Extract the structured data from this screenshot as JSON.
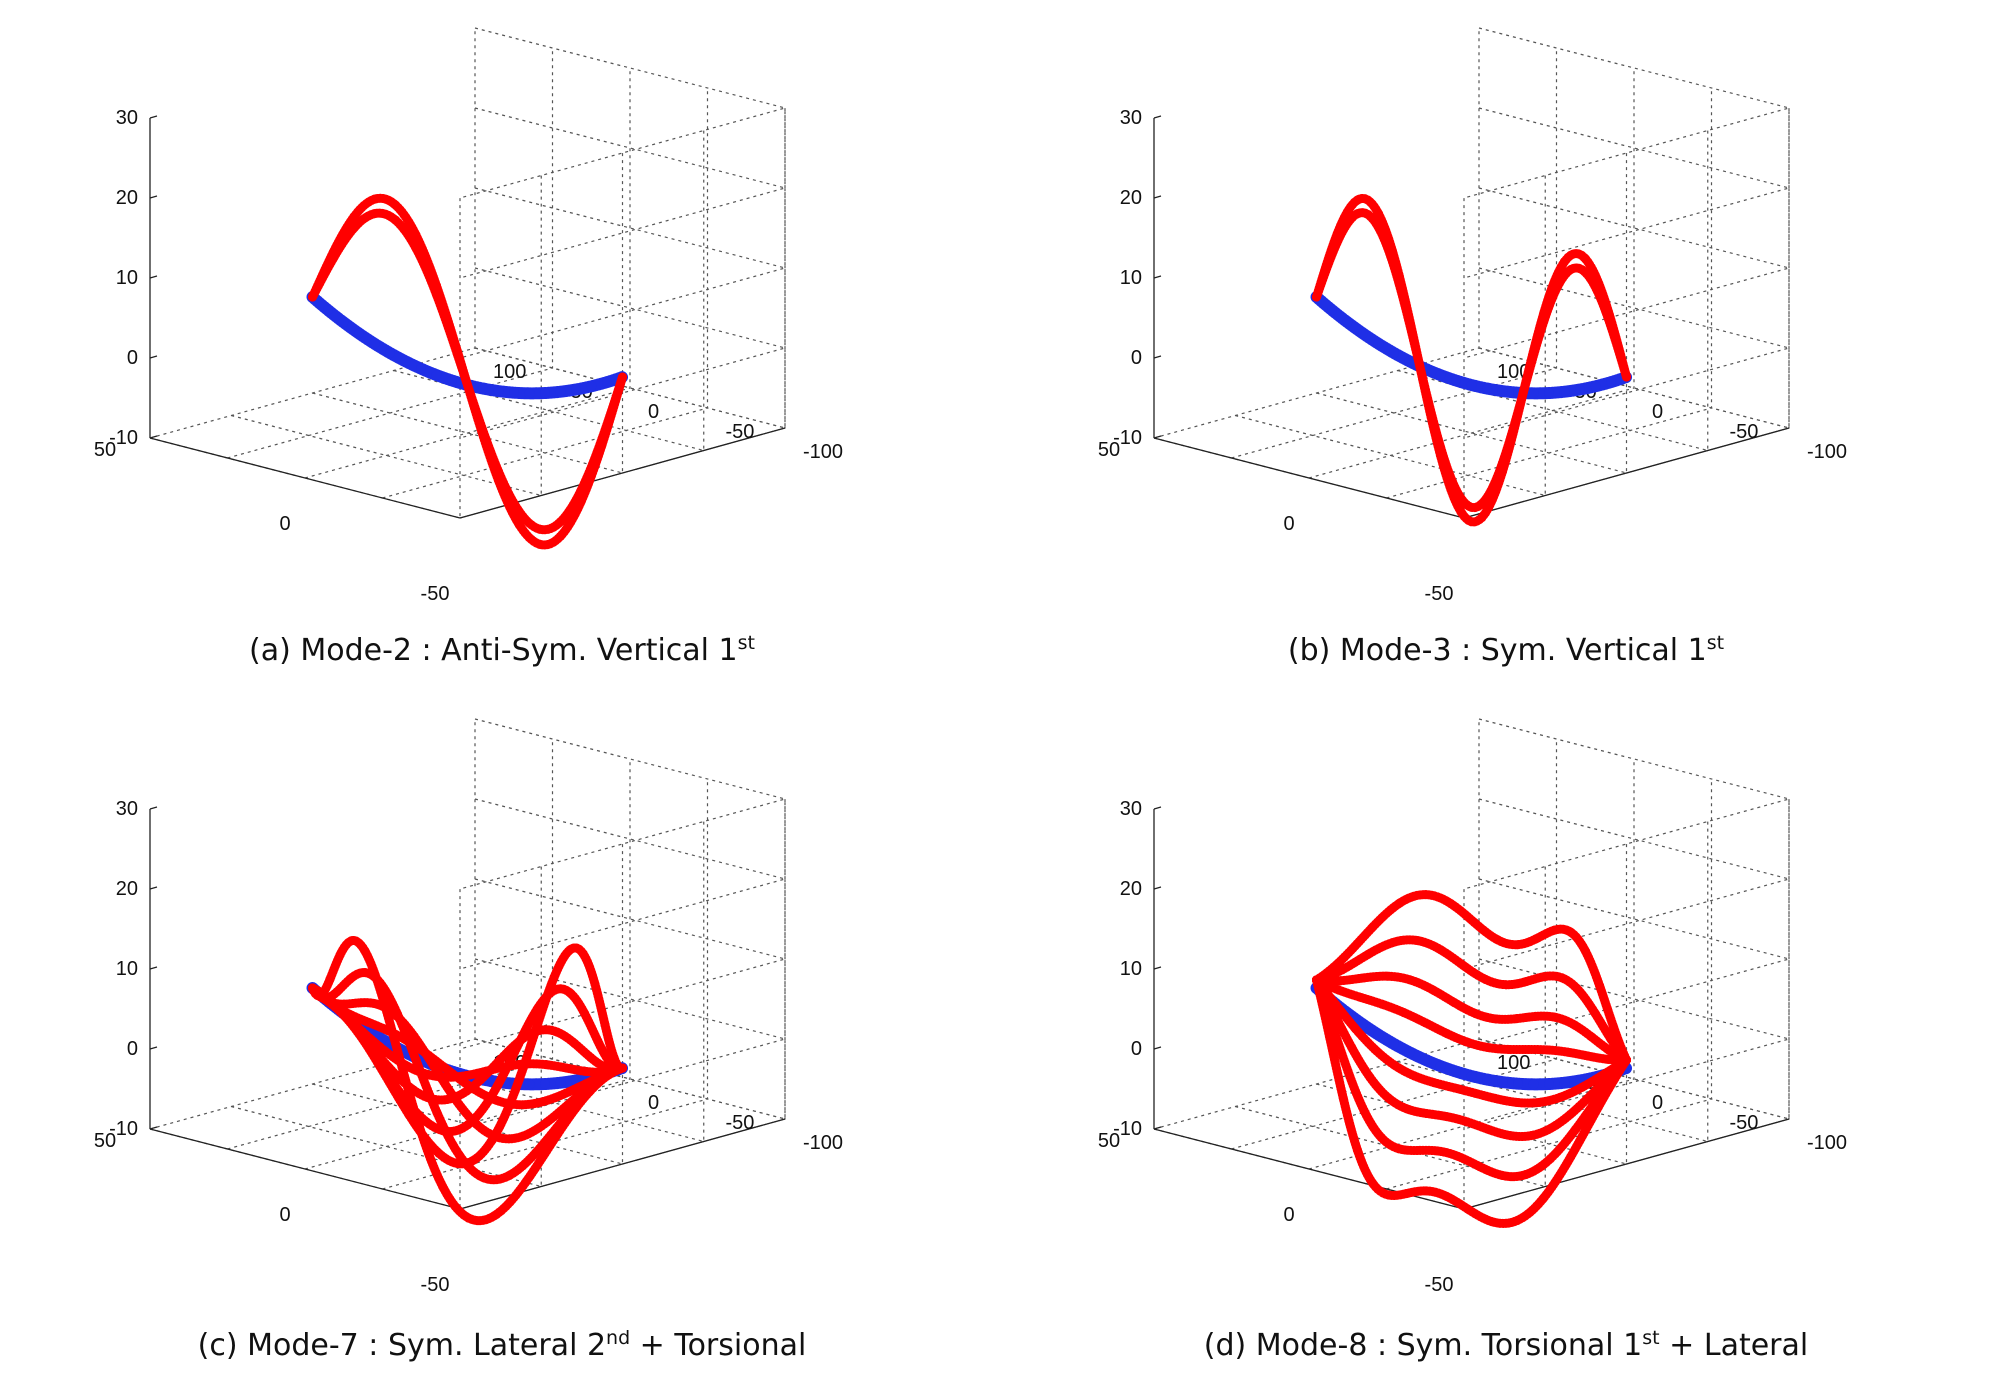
{
  "colors": {
    "deformed": "#ff0000",
    "undeformed": "#1f2fe6",
    "grid": "#555555"
  },
  "chart_data": [
    {
      "type": "scatter3d",
      "title": "",
      "caption": {
        "prefix": "(a) Mode-2 : Anti-Sym. Vertical 1",
        "sup1": "st",
        "mid": "",
        "sup2": "",
        "suffix": ""
      },
      "xlim": [
        -100,
        100
      ],
      "ylim": [
        -50,
        50
      ],
      "zlim": [
        -10,
        30
      ],
      "xticks": [
        "100",
        "50",
        "0",
        "-50",
        "-100"
      ],
      "yticks": [
        "50",
        "0",
        "-50"
      ],
      "zticks": [
        "30",
        "20",
        "10",
        "0",
        "-10"
      ],
      "grid": true,
      "series": [
        {
          "role": "undeformed",
          "color": "#1f2fe6",
          "curves": [
            {
              "shape": "static",
              "amp": 0
            }
          ]
        },
        {
          "role": "deformed",
          "color": "#ff0000",
          "curves": [
            {
              "shape": "antisym",
              "amp": 20
            },
            {
              "shape": "antisym",
              "amp": 18
            }
          ]
        }
      ]
    },
    {
      "type": "scatter3d",
      "title": "",
      "caption": {
        "prefix": "(b) Mode-3 : Sym. Vertical 1",
        "sup1": "st",
        "mid": "",
        "sup2": "",
        "suffix": ""
      },
      "xlim": [
        -100,
        100
      ],
      "ylim": [
        -50,
        50
      ],
      "zlim": [
        -10,
        30
      ],
      "xticks": [
        "100",
        "50",
        "0",
        "-50",
        "-100"
      ],
      "yticks": [
        "50",
        "0",
        "-50"
      ],
      "zticks": [
        "30",
        "20",
        "10",
        "0",
        "-10"
      ],
      "grid": true,
      "series": [
        {
          "role": "undeformed",
          "color": "#1f2fe6",
          "curves": [
            {
              "shape": "static",
              "amp": 0
            }
          ]
        },
        {
          "role": "deformed",
          "color": "#ff0000",
          "curves": [
            {
              "shape": "sym3",
              "amp": 19
            },
            {
              "shape": "sym3",
              "amp": 17
            }
          ]
        }
      ]
    },
    {
      "type": "scatter3d",
      "title": "",
      "caption": {
        "prefix": "(c) Mode-7 : Sym. Lateral 2",
        "sup1": "nd",
        "mid": " + Torsional",
        "sup2": "",
        "suffix": ""
      },
      "xlim": [
        -100,
        100
      ],
      "ylim": [
        -50,
        50
      ],
      "zlim": [
        -10,
        30
      ],
      "xticks": [
        "100",
        "50",
        "0",
        "-50",
        "-100"
      ],
      "yticks": [
        "50",
        "0",
        "-50"
      ],
      "zticks": [
        "30",
        "20",
        "10",
        "0",
        "-10"
      ],
      "grid": true,
      "series": [
        {
          "role": "undeformed",
          "color": "#1f2fe6",
          "curves": [
            {
              "shape": "static",
              "amp": 0
            }
          ]
        },
        {
          "role": "deformed",
          "color": "#ff0000",
          "curves": [
            {
              "shape": "lateral",
              "amp": 20
            },
            {
              "shape": "lateral",
              "amp": 14
            },
            {
              "shape": "lateral",
              "amp": 8
            },
            {
              "shape": "lateral",
              "amp": 3
            },
            {
              "shape": "lateral",
              "amp": -3
            },
            {
              "shape": "lateral",
              "amp": -8
            },
            {
              "shape": "lateral",
              "amp": -14
            },
            {
              "shape": "lateral",
              "amp": -20
            }
          ]
        }
      ]
    },
    {
      "type": "scatter3d",
      "title": "",
      "caption": {
        "prefix": "(d) Mode-8 : Sym. Torsional 1",
        "sup1": "st",
        "mid": " + Lateral",
        "sup2": "",
        "suffix": ""
      },
      "xlim": [
        -100,
        100
      ],
      "ylim": [
        -50,
        50
      ],
      "zlim": [
        -10,
        30
      ],
      "xticks": [
        "100",
        "50",
        "0",
        "-50",
        "-100"
      ],
      "yticks": [
        "50",
        "0",
        "-50"
      ],
      "zticks": [
        "30",
        "20",
        "10",
        "0",
        "-10"
      ],
      "grid": true,
      "series": [
        {
          "role": "undeformed",
          "color": "#1f2fe6",
          "curves": [
            {
              "shape": "static",
              "amp": 0
            }
          ]
        },
        {
          "role": "deformed",
          "color": "#ff0000",
          "curves": [
            {
              "shape": "torsion",
              "amp": 22
            },
            {
              "shape": "torsion",
              "amp": 15
            },
            {
              "shape": "torsion",
              "amp": 9
            },
            {
              "shape": "torsion",
              "amp": 4
            },
            {
              "shape": "torsion",
              "amp": -4
            },
            {
              "shape": "torsion",
              "amp": -9
            },
            {
              "shape": "torsion",
              "amp": -15
            },
            {
              "shape": "torsion",
              "amp": -22
            }
          ]
        }
      ]
    }
  ]
}
